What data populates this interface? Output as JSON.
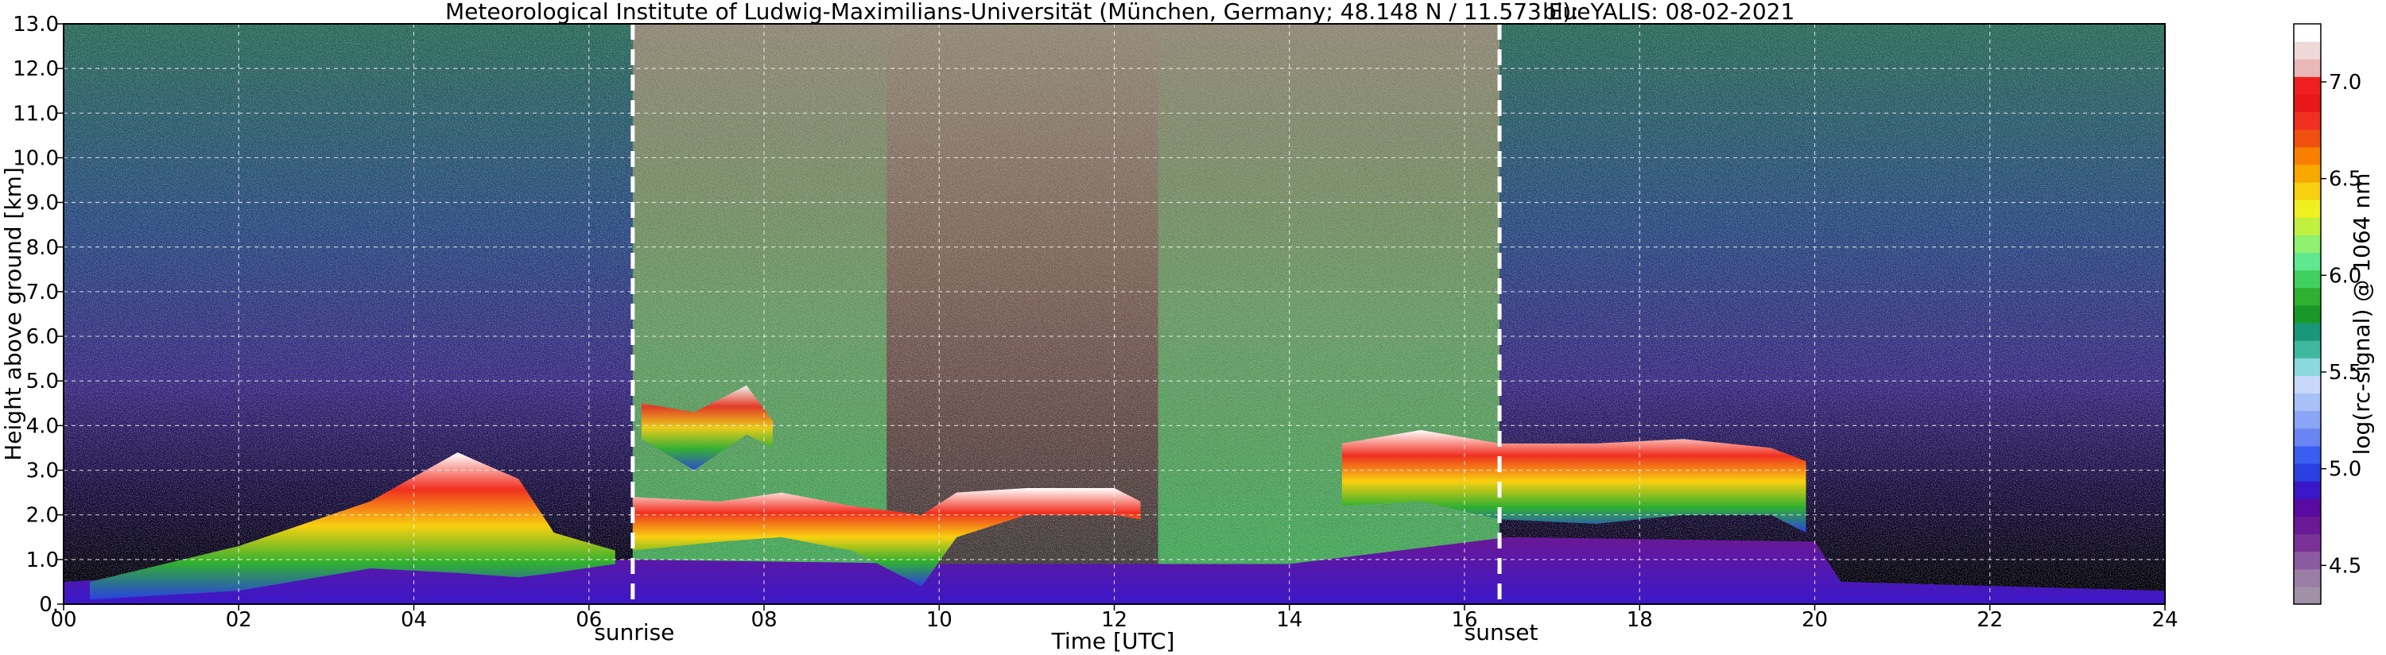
{
  "chart_data": {
    "type": "heatmap",
    "title": "Meteorological Institute of Ludwig-Maximilians-Universität (München, Germany; 48.148 N / 11.573 E):",
    "title_right": "blueYALIS: 08-02-2021",
    "xlabel": "Time [UTC]",
    "ylabel": "Height above ground [km]",
    "xlim": [
      0,
      24
    ],
    "ylim": [
      0,
      13
    ],
    "x_ticks": [
      "00",
      "02",
      "04",
      "06",
      "08",
      "10",
      "12",
      "14",
      "16",
      "18",
      "20",
      "22",
      "24"
    ],
    "x_tick_values": [
      0,
      2,
      4,
      6,
      8,
      10,
      12,
      14,
      16,
      18,
      20,
      22,
      24
    ],
    "y_ticks": [
      "0.",
      "1.0",
      "2.0",
      "3.0",
      "4.0",
      "5.0",
      "6.0",
      "7.0",
      "8.0",
      "9.0",
      "10.0",
      "11.0",
      "12.0",
      "13.0"
    ],
    "y_tick_values": [
      0,
      1,
      2,
      3,
      4,
      5,
      6,
      7,
      8,
      9,
      10,
      11,
      12,
      13
    ],
    "grid": true,
    "events": [
      {
        "label": "sunrise",
        "time": 6.5
      },
      {
        "label": "sunset",
        "time": 16.4
      }
    ],
    "colorbar": {
      "label": "log(rc-signal) @ 1064 nm",
      "range": [
        4.3,
        7.3
      ],
      "ticks": [
        "4.5",
        "5.0",
        "5.5",
        "6.0",
        "6.5",
        "7.0"
      ],
      "tick_values": [
        4.5,
        5.0,
        5.5,
        6.0,
        6.5,
        7.0
      ],
      "colors": [
        "#a090a8",
        "#9a7ea6",
        "#8c5aa0",
        "#7a3298",
        "#6a1896",
        "#5a0aa0",
        "#3a18c8",
        "#2a40e0",
        "#3a5ef0",
        "#6a84f4",
        "#8aa4f6",
        "#a8c0f8",
        "#c8d8fa",
        "#8ad8e0",
        "#40b8a0",
        "#189878",
        "#189828",
        "#30b030",
        "#40d060",
        "#60e890",
        "#90f070",
        "#c0f040",
        "#f0f020",
        "#f8d010",
        "#f8a800",
        "#f88000",
        "#f05010",
        "#f03020",
        "#e81818",
        "#f02020",
        "#e8b8b8",
        "#f0d8d8",
        "#ffffff"
      ]
    }
  }
}
